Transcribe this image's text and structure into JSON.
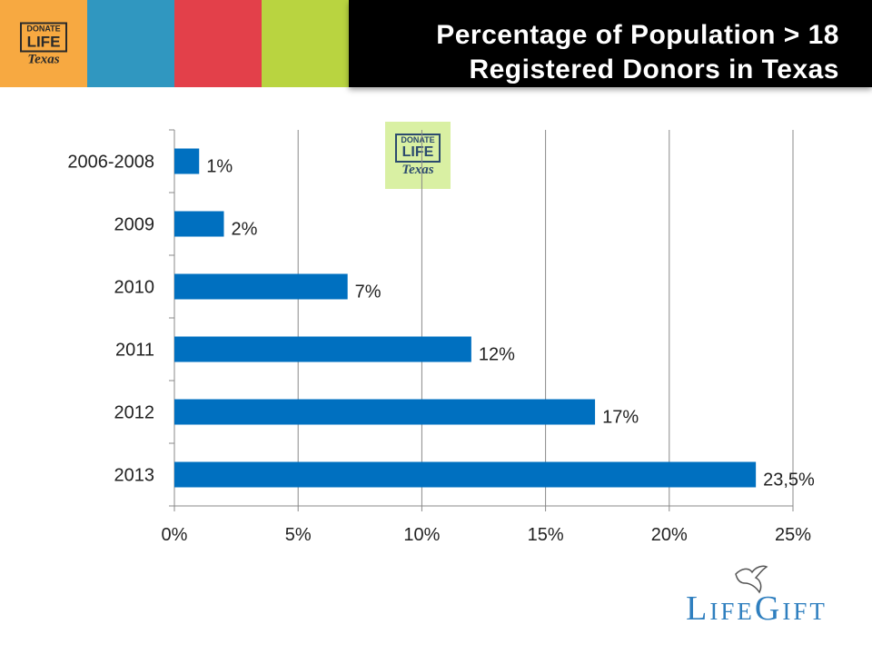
{
  "header": {
    "title_line1": "Percentage of Population  > 18",
    "title_line2": "Registered Donors in Texas",
    "color_blocks": [
      "#f7a941",
      "#3097c0",
      "#e3404a",
      "#b9d440"
    ]
  },
  "logo": {
    "line1": "DONATE",
    "line2": "LIFE",
    "line3": "Texas"
  },
  "brand": {
    "name": "LifeGift"
  },
  "chart_data": {
    "type": "bar",
    "orientation": "horizontal",
    "categories": [
      "2006-2008",
      "2009",
      "2010",
      "2011",
      "2012",
      "2013"
    ],
    "values": [
      1,
      2,
      7,
      12,
      17,
      23.5
    ],
    "data_labels": [
      "1%",
      "2%",
      "7%",
      "12%",
      "17%",
      "23,5%"
    ],
    "xlim": [
      0,
      25
    ],
    "xticks": [
      0,
      5,
      10,
      15,
      20,
      25
    ],
    "xtick_labels": [
      "0%",
      "5%",
      "10%",
      "15%",
      "20%",
      "25%"
    ],
    "grid": "vertical",
    "bar_color": "#0070c0",
    "title": "",
    "xlabel": "",
    "ylabel": ""
  }
}
